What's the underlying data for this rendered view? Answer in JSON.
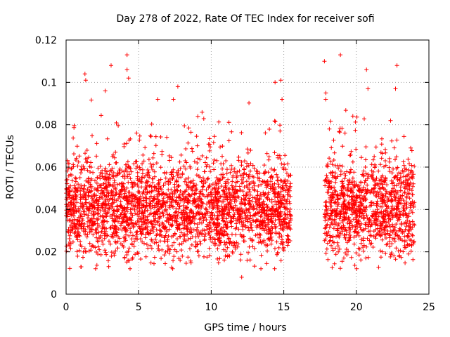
{
  "chart_data": {
    "type": "scatter",
    "title": "Day 278 of 2022, Rate Of TEC Index for receiver sofi",
    "xlabel": "GPS time / hours",
    "ylabel": "ROTI / TECUs",
    "xlim": [
      0,
      25
    ],
    "ylim": [
      0,
      0.12
    ],
    "xticks": [
      "0",
      "5",
      "10",
      "15",
      "20",
      "25"
    ],
    "yticks": [
      "0",
      "0.02",
      "0.04",
      "0.06",
      "0.08",
      "0.1",
      "0.12"
    ],
    "grid": true,
    "marker": "+",
    "color": "#ff0000",
    "series": [
      {
        "name": "ROTI",
        "segments": [
          {
            "x_start": 0.0,
            "x_end": 15.5,
            "typical_min": 0.02,
            "typical_max": 0.06
          },
          {
            "x_start": 17.8,
            "x_end": 24.0,
            "typical_min": 0.02,
            "typical_max": 0.06
          }
        ],
        "notable_points": [
          {
            "x": 1.3,
            "y": 0.104
          },
          {
            "x": 1.35,
            "y": 0.101
          },
          {
            "x": 2.7,
            "y": 0.096
          },
          {
            "x": 3.1,
            "y": 0.108
          },
          {
            "x": 4.2,
            "y": 0.113
          },
          {
            "x": 4.3,
            "y": 0.102
          },
          {
            "x": 4.2,
            "y": 0.106
          },
          {
            "x": 7.7,
            "y": 0.098
          },
          {
            "x": 12.1,
            "y": 0.008
          },
          {
            "x": 14.4,
            "y": 0.1
          },
          {
            "x": 14.8,
            "y": 0.101
          },
          {
            "x": 17.8,
            "y": 0.11
          },
          {
            "x": 17.9,
            "y": 0.095
          },
          {
            "x": 18.9,
            "y": 0.113
          },
          {
            "x": 20.7,
            "y": 0.106
          },
          {
            "x": 20.8,
            "y": 0.097
          },
          {
            "x": 22.8,
            "y": 0.108
          },
          {
            "x": 22.7,
            "y": 0.097
          }
        ]
      }
    ]
  }
}
